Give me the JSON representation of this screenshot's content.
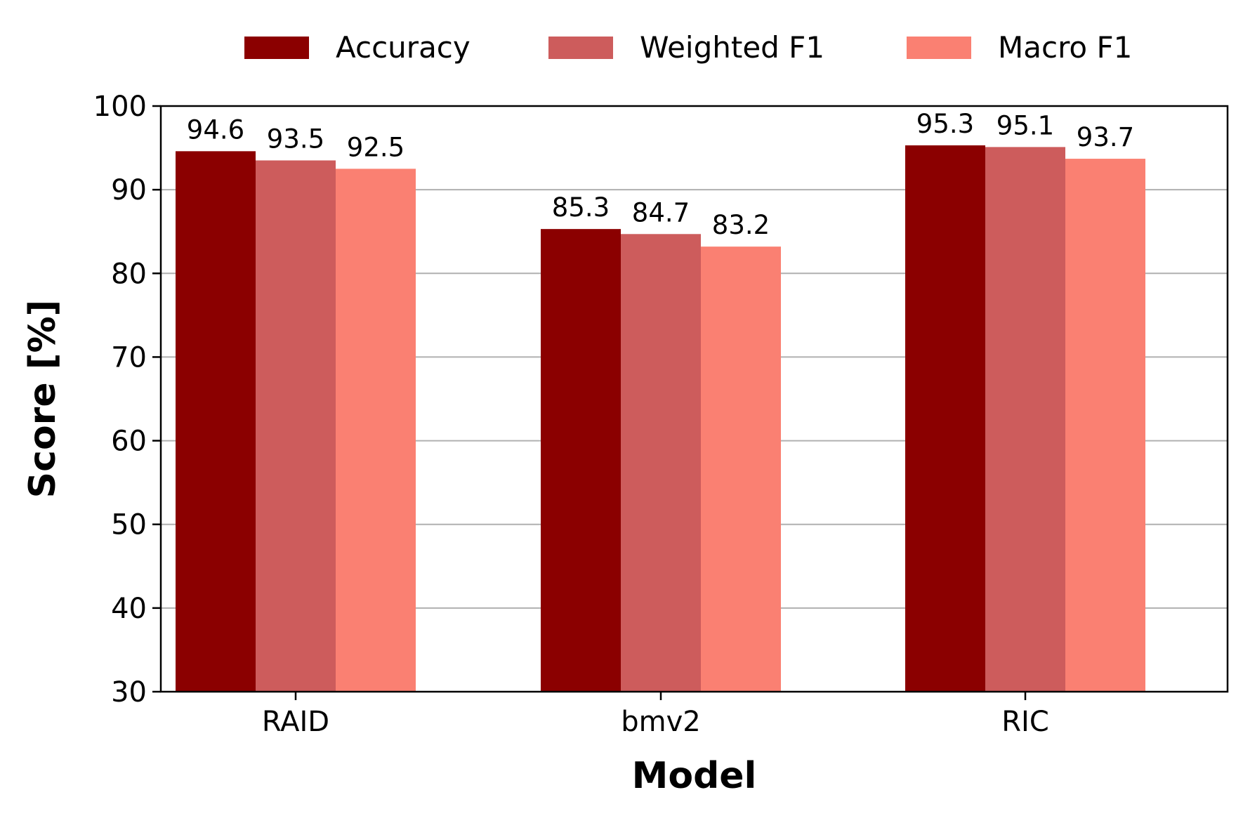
{
  "chart_data": {
    "type": "bar",
    "xlabel": "Model",
    "ylabel": "Score [%]",
    "categories": [
      "RAID",
      "bmv2",
      "RIC"
    ],
    "series": [
      {
        "name": "Accuracy",
        "color": "#8b0000",
        "values": [
          94.6,
          85.3,
          95.3
        ]
      },
      {
        "name": "Weighted F1",
        "color": "#cd5c5c",
        "values": [
          93.5,
          84.7,
          95.1
        ]
      },
      {
        "name": "Macro F1",
        "color": "#fa8072",
        "values": [
          92.5,
          83.2,
          93.7
        ]
      }
    ],
    "ylim": [
      30,
      100
    ],
    "yticks": [
      30,
      40,
      50,
      60,
      70,
      80,
      90,
      100
    ],
    "grid": "horizontal",
    "legend_position": "top-center"
  }
}
